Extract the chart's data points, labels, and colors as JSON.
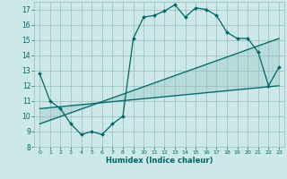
{
  "title": "",
  "xlabel": "Humidex (Indice chaleur)",
  "xlim": [
    -0.5,
    23.5
  ],
  "ylim": [
    8,
    17.5
  ],
  "yticks": [
    8,
    9,
    10,
    11,
    12,
    13,
    14,
    15,
    16,
    17
  ],
  "xticks": [
    0,
    1,
    2,
    3,
    4,
    5,
    6,
    7,
    8,
    9,
    10,
    11,
    12,
    13,
    14,
    15,
    16,
    17,
    18,
    19,
    20,
    21,
    22,
    23
  ],
  "bg_color": "#cce8e8",
  "grid_color": "#99bbbb",
  "line_color": "#006666",
  "line_width": 0.9,
  "marker": "D",
  "marker_size": 2.0,
  "main_x": [
    0,
    1,
    2,
    3,
    4,
    5,
    6,
    7,
    8,
    9,
    10,
    11,
    12,
    13,
    14,
    15,
    16,
    17,
    18,
    19,
    20,
    21,
    22,
    23
  ],
  "main_y": [
    12.8,
    11.0,
    10.5,
    9.5,
    8.8,
    9.0,
    8.8,
    9.5,
    10.0,
    15.1,
    16.5,
    16.6,
    16.9,
    17.3,
    16.5,
    17.1,
    17.0,
    16.6,
    15.5,
    15.1,
    15.1,
    14.2,
    12.0,
    13.2
  ],
  "line2_x": [
    0,
    23
  ],
  "line2_y": [
    9.5,
    15.1
  ],
  "line3_x": [
    0,
    23
  ],
  "line3_y": [
    10.5,
    12.0
  ]
}
